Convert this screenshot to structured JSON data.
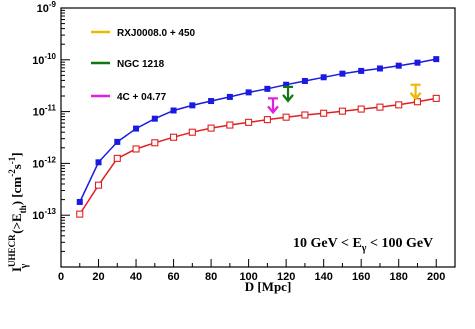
{
  "chart_data": {
    "type": "line",
    "title": "",
    "xlabel": "D [Mpc]",
    "ylabel": "I_γ^UHECR(>E_th) [cm^-2 s^-1]",
    "xlim": [
      0,
      210
    ],
    "ylim": [
      1e-14,
      1e-09
    ],
    "y_scale": "log",
    "grid": false,
    "x_tick_labels": [
      "0",
      "20",
      "40",
      "60",
      "80",
      "100",
      "120",
      "140",
      "160",
      "180",
      "200"
    ],
    "y_tick_labels": [
      {
        "value": 1e-09,
        "base": "10",
        "exp": "-9"
      },
      {
        "value": 1e-10,
        "base": "10",
        "exp": "-10"
      },
      {
        "value": 1e-11,
        "base": "10",
        "exp": "-11"
      },
      {
        "value": 1e-12,
        "base": "10",
        "exp": "-12"
      },
      {
        "value": 1e-13,
        "base": "10",
        "exp": "-13"
      }
    ],
    "ylabel_parts": {
      "main": "I",
      "sub": "γ",
      "sup": "UHECR",
      "mid": "(>E",
      "sub2": "th",
      "tail": ") [cm",
      "exp1": "-2",
      "s": "s",
      "exp2": "-1",
      "close": "]"
    },
    "annotation": {
      "prefix": "10 GeV <  E",
      "sub": "γ",
      "suffix": " < 100  GeV"
    },
    "legend": [
      {
        "label": "RXJ0008.0 + 450",
        "color": "#f0b800"
      },
      {
        "label": "NGC 1218",
        "color": "#107810"
      },
      {
        "label": "4C + 04.77",
        "color": "#e020e0"
      }
    ],
    "limit_arrows": [
      {
        "source": "4C + 04.77",
        "x": 113,
        "y": 1.8e-11,
        "color": "#e020e0"
      },
      {
        "source": "NGC 1218",
        "x": 121,
        "y": 3e-11,
        "color": "#107810"
      },
      {
        "source": "RXJ0008.0 + 450",
        "x": 189,
        "y": 3.3e-11,
        "color": "#f0b800"
      }
    ],
    "series": [
      {
        "color": "#1a1ae0",
        "marker": "filled-square",
        "x": [
          10,
          20,
          30,
          40,
          50,
          60,
          70,
          80,
          90,
          100,
          110,
          120,
          130,
          140,
          150,
          160,
          170,
          180,
          190,
          200
        ],
        "values": [
          1.8e-13,
          1.05e-12,
          2.6e-12,
          4.7e-12,
          7.3e-12,
          1.05e-11,
          1.32e-11,
          1.6e-11,
          1.92e-11,
          2.35e-11,
          2.75e-11,
          3.3e-11,
          3.9e-11,
          4.6e-11,
          5.4e-11,
          6.1e-11,
          6.8e-11,
          7.7e-11,
          8.8e-11,
          1.03e-10
        ]
      },
      {
        "color": "#e02020",
        "marker": "open-square",
        "x": [
          10,
          20,
          30,
          40,
          50,
          60,
          70,
          80,
          90,
          100,
          110,
          120,
          130,
          140,
          150,
          160,
          170,
          180,
          190,
          200
        ],
        "values": [
          1.05e-13,
          3.8e-13,
          1.25e-12,
          1.9e-12,
          2.5e-12,
          3.2e-12,
          4e-12,
          4.8e-12,
          5.5e-12,
          6.2e-12,
          7e-12,
          7.8e-12,
          8.6e-12,
          9.3e-12,
          1.02e-11,
          1.12e-11,
          1.22e-11,
          1.35e-11,
          1.55e-11,
          1.8e-11
        ]
      }
    ]
  }
}
